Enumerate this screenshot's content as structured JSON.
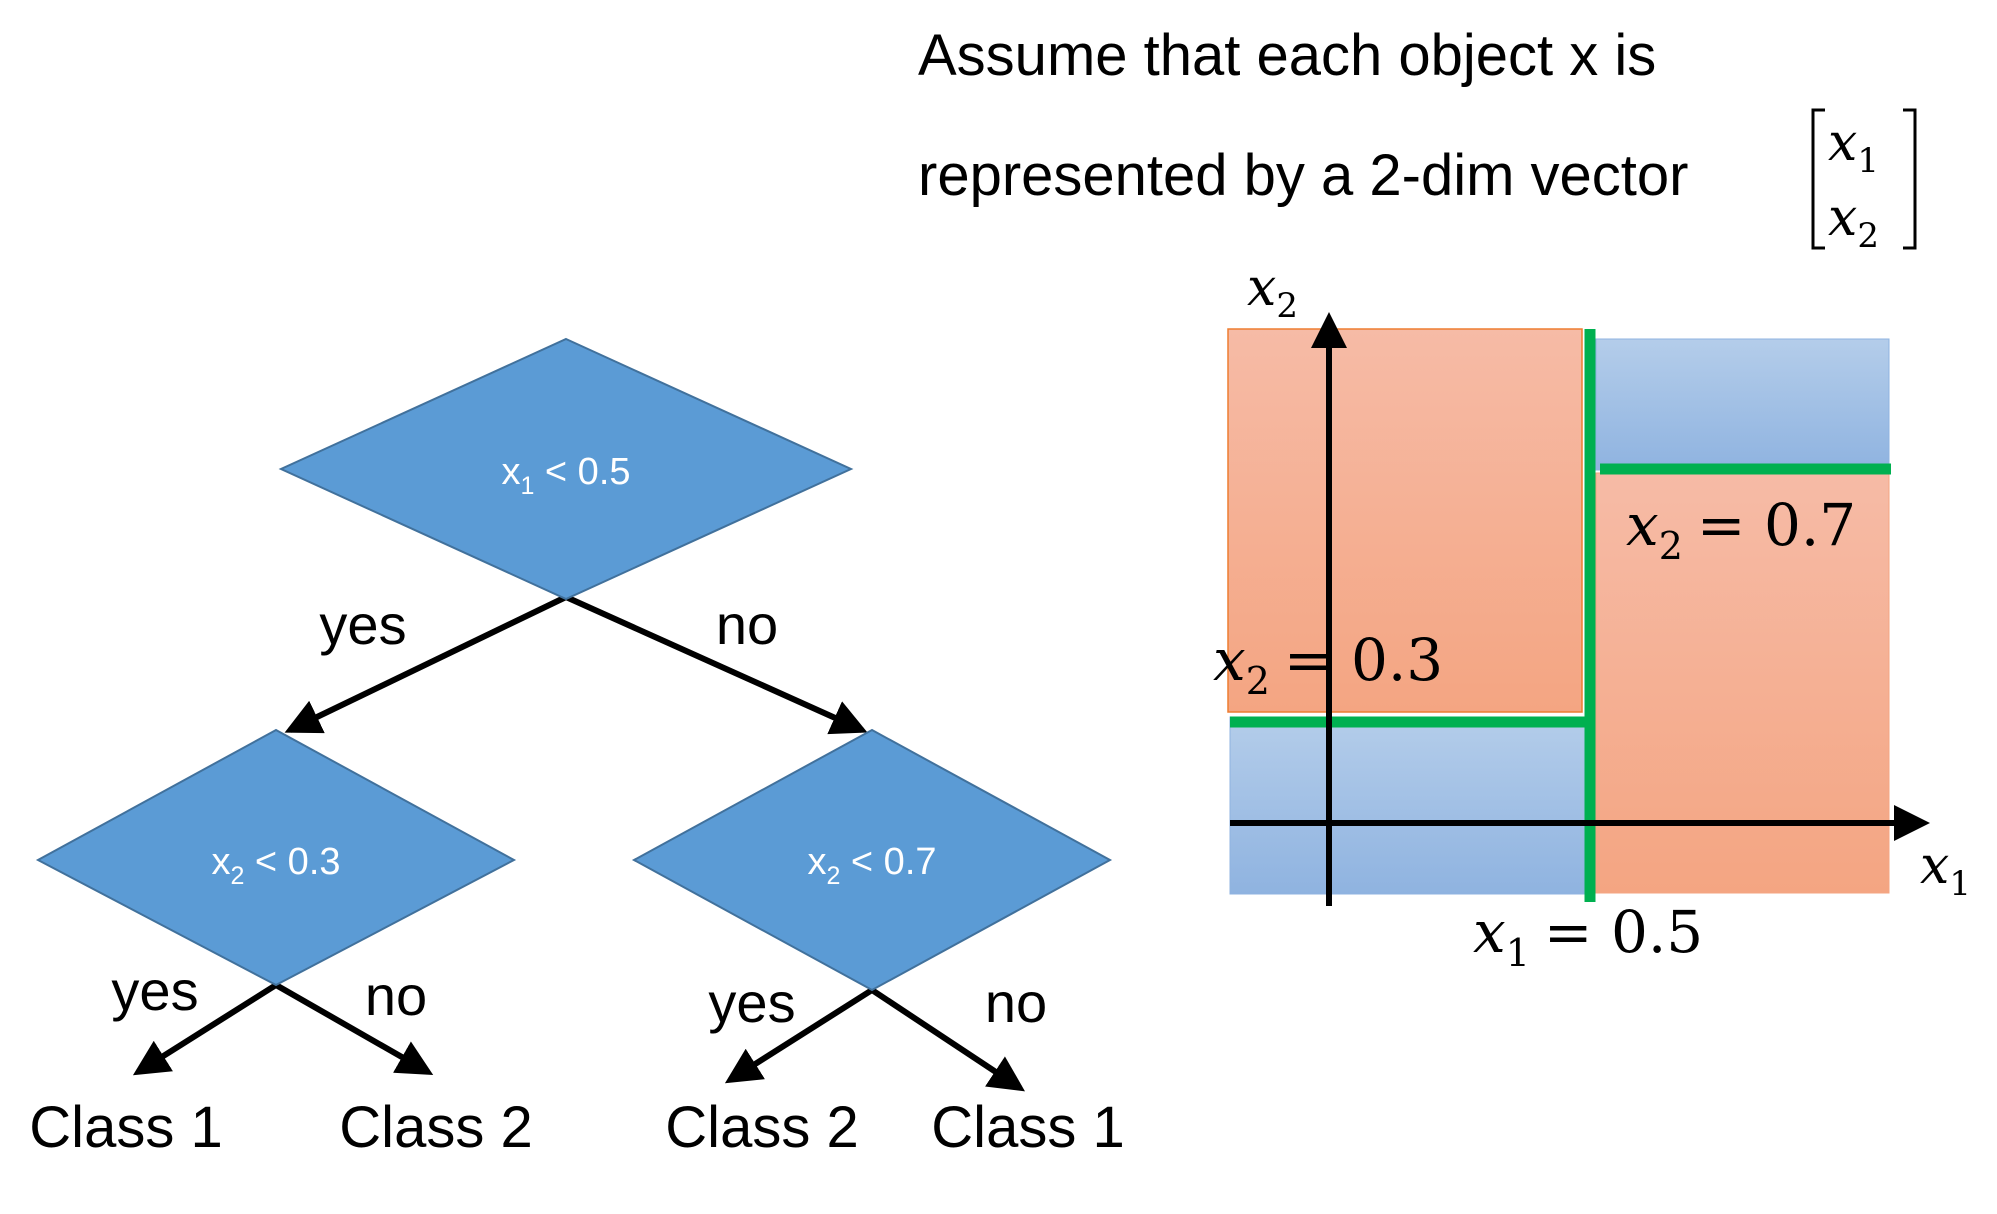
{
  "header": {
    "line1": "Assume that each object x is",
    "line2": "represented by a 2-dim vector",
    "vector": {
      "top_var": "x",
      "top_sub": "1",
      "bottom_var": "x",
      "bottom_sub": "2"
    }
  },
  "tree": {
    "root": {
      "var": "x",
      "sub": "1",
      "cond": " < 0.5",
      "fill": "#5b9bd5"
    },
    "left": {
      "var": "x",
      "sub": "2",
      "cond": " < 0.3",
      "fill": "#5b9bd5"
    },
    "right": {
      "var": "x",
      "sub": "2",
      "cond": " < 0.7",
      "fill": "#5b9bd5"
    },
    "root_yes": "yes",
    "root_no": "no",
    "left_yes": "yes",
    "left_no": "no",
    "right_yes": "yes",
    "right_no": "no",
    "leaf_ll": "Class 1",
    "leaf_lr": "Class 2",
    "leaf_rl": "Class 2",
    "leaf_rr": "Class 1"
  },
  "plot": {
    "x_axis": {
      "var": "x",
      "sub": "1"
    },
    "y_axis": {
      "var": "x",
      "sub": "2"
    },
    "colors": {
      "class1": "#f4a582",
      "class2": "#9fbfe6",
      "split": "#00b050"
    },
    "split_x1": {
      "var": "x",
      "sub": "1",
      "eq": "= 0.5"
    },
    "split_low": {
      "var": "x",
      "sub": "2",
      "eq": "= 0.3"
    },
    "split_high": {
      "var": "x",
      "sub": "2",
      "eq": "= 0.7"
    }
  }
}
